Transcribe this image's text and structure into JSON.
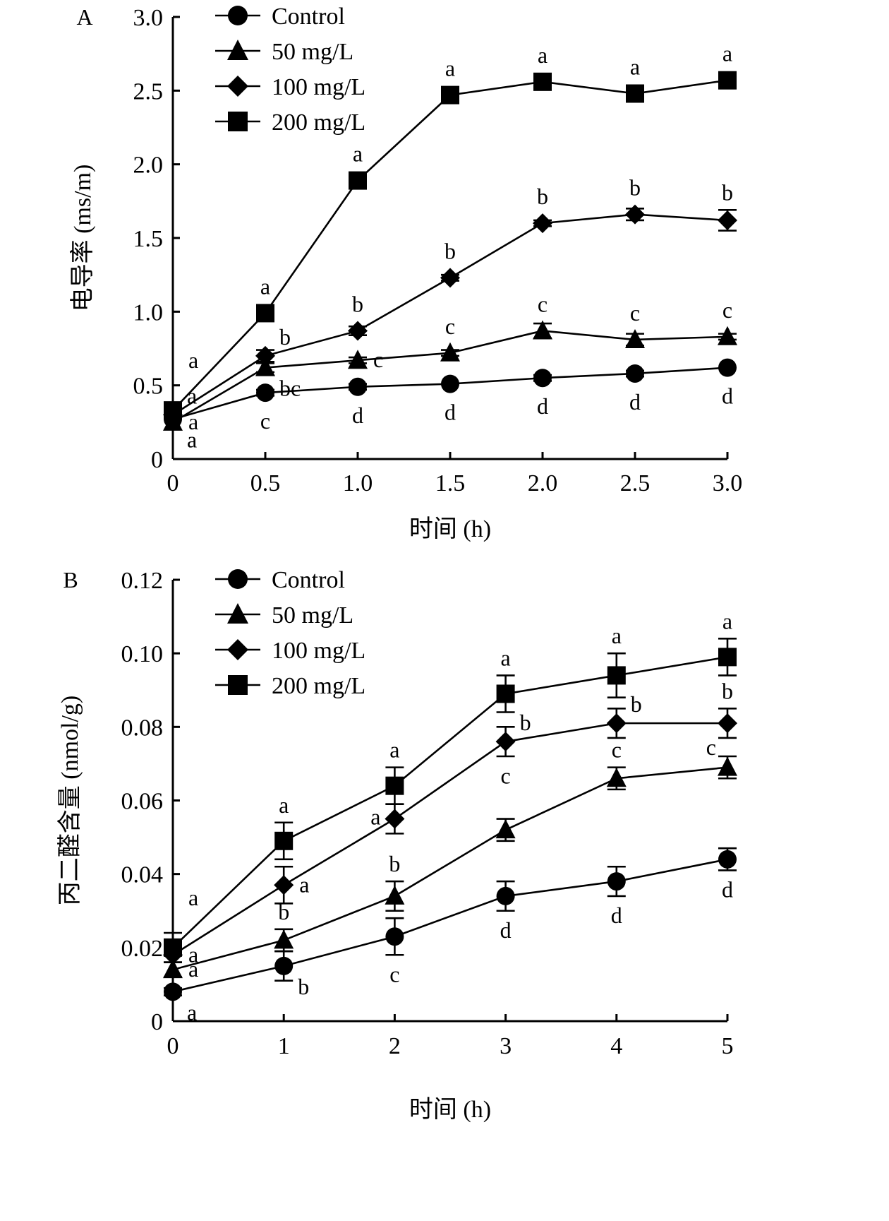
{
  "chart_data": [
    {
      "panel": "A",
      "type": "line",
      "title": "",
      "xlabel": "时间 (h)",
      "ylabel": "电导率 (ms/m)",
      "xlim": [
        0,
        3.0
      ],
      "ylim": [
        0,
        3.0
      ],
      "xticks": [
        0,
        0.5,
        1.0,
        1.5,
        2.0,
        2.5,
        3.0
      ],
      "xtick_labels": [
        "0",
        "0.5",
        "1.0",
        "1.5",
        "2.0",
        "2.5",
        "3.0"
      ],
      "yticks": [
        0,
        0.5,
        1.0,
        1.5,
        2.0,
        2.5,
        3.0
      ],
      "ytick_labels": [
        "0",
        "0.5",
        "1.0",
        "1.5",
        "2.0",
        "2.5",
        "3.0"
      ],
      "grid": false,
      "legend_position": "top-left",
      "x": [
        0,
        0.5,
        1.0,
        1.5,
        2.0,
        2.5,
        3.0
      ],
      "series": [
        {
          "name": "Control",
          "marker": "circle",
          "values": [
            0.27,
            0.45,
            0.49,
            0.51,
            0.55,
            0.58,
            0.62
          ],
          "errors": [
            0.01,
            0.02,
            0.02,
            0.01,
            0.02,
            0.02,
            0.01
          ],
          "sig_labels": [
            "a",
            "c",
            "d",
            "d",
            "d",
            "d",
            "d"
          ],
          "sig_pos": [
            "right-below",
            "below",
            "below",
            "below",
            "below",
            "below",
            "below"
          ]
        },
        {
          "name": "50 mg/L",
          "marker": "triangle",
          "values": [
            0.25,
            0.62,
            0.67,
            0.72,
            0.87,
            0.81,
            0.83
          ],
          "errors": [
            0.01,
            0.03,
            0.02,
            0.02,
            0.05,
            0.04,
            0.02
          ],
          "sig_labels": [
            "a",
            "bc",
            "c",
            "c",
            "c",
            "c",
            "c"
          ],
          "sig_pos": [
            "right",
            "right-below",
            "right",
            "above",
            "above",
            "above",
            "above"
          ]
        },
        {
          "name": "100 mg/L",
          "marker": "diamond",
          "values": [
            0.3,
            0.7,
            0.87,
            1.23,
            1.6,
            1.66,
            1.62
          ],
          "errors": [
            0.01,
            0.04,
            0.03,
            0.02,
            0.02,
            0.04,
            0.07
          ],
          "sig_labels": [
            "a",
            "b",
            "b",
            "b",
            "b",
            "b",
            "b"
          ],
          "sig_pos": [
            "right-up",
            "right-up",
            "above",
            "above",
            "above",
            "above",
            "above"
          ]
        },
        {
          "name": "200 mg/L",
          "marker": "square",
          "values": [
            0.33,
            0.99,
            1.89,
            2.47,
            2.56,
            2.48,
            2.57
          ],
          "errors": [
            0.01,
            0.01,
            0.01,
            0.01,
            0.01,
            0.01,
            0.01
          ],
          "sig_labels": [
            "a",
            "a",
            "a",
            "a",
            "a",
            "a",
            "a"
          ],
          "sig_pos": [
            "right-high",
            "above",
            "above",
            "above",
            "above",
            "above",
            "above"
          ]
        }
      ]
    },
    {
      "panel": "B",
      "type": "line",
      "title": "",
      "xlabel": "时间 (h)",
      "ylabel": "丙二醛含量 (nmol/g)",
      "xlim": [
        0,
        5
      ],
      "ylim": [
        0,
        0.12
      ],
      "xticks": [
        0,
        1,
        2,
        3,
        4,
        5
      ],
      "xtick_labels": [
        "0",
        "1",
        "2",
        "3",
        "4",
        "5"
      ],
      "yticks": [
        0,
        0.02,
        0.04,
        0.06,
        0.08,
        0.1,
        0.12
      ],
      "ytick_labels": [
        "0",
        "0.02",
        "0.04",
        "0.06",
        "0.08",
        "0.10",
        "0.12"
      ],
      "grid": false,
      "legend_position": "top-left",
      "x": [
        0,
        1,
        2,
        3,
        4,
        5
      ],
      "series": [
        {
          "name": "Control",
          "marker": "circle",
          "values": [
            0.008,
            0.015,
            0.023,
            0.034,
            0.038,
            0.044
          ],
          "errors": [
            0.001,
            0.004,
            0.005,
            0.004,
            0.004,
            0.003
          ],
          "sig_labels": [
            "a",
            "b",
            "c",
            "d",
            "d",
            "d"
          ],
          "sig_pos": [
            "right-below",
            "right-below",
            "below",
            "below",
            "below",
            "below"
          ]
        },
        {
          "name": "50 mg/L",
          "marker": "triangle",
          "values": [
            0.014,
            0.022,
            0.034,
            0.052,
            0.066,
            0.069
          ],
          "errors": [
            0.002,
            0.003,
            0.004,
            0.003,
            0.003,
            0.003
          ],
          "sig_labels": [
            "a",
            "b",
            "b",
            "c",
            "c",
            "c"
          ],
          "sig_pos": [
            "right",
            "above",
            "above",
            "above-far",
            "above",
            "left-above"
          ]
        },
        {
          "name": "100 mg/L",
          "marker": "diamond",
          "values": [
            0.018,
            0.037,
            0.055,
            0.076,
            0.081,
            0.081
          ],
          "errors": [
            0.002,
            0.005,
            0.004,
            0.004,
            0.004,
            0.004
          ],
          "sig_labels": [
            "a",
            "a",
            "a",
            "b",
            "b",
            "b"
          ],
          "sig_pos": [
            "right",
            "right",
            "left",
            "right-up",
            "right-up",
            "above"
          ]
        },
        {
          "name": "200 mg/L",
          "marker": "square",
          "values": [
            0.02,
            0.049,
            0.064,
            0.089,
            0.094,
            0.099
          ],
          "errors": [
            0.004,
            0.005,
            0.005,
            0.005,
            0.006,
            0.005
          ],
          "sig_labels": [
            "a",
            "a",
            "a",
            "a",
            "a",
            "a"
          ],
          "sig_pos": [
            "right-high",
            "above",
            "above",
            "above",
            "above",
            "above"
          ]
        }
      ]
    }
  ]
}
